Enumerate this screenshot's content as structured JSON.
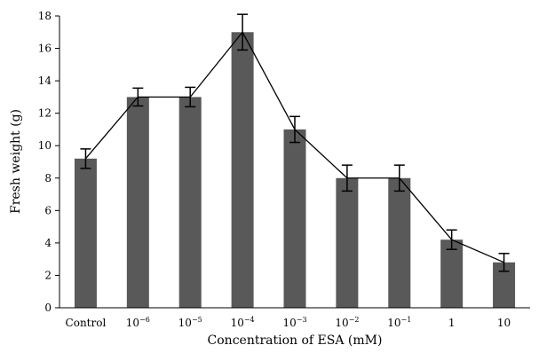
{
  "chart_data": {
    "type": "bar",
    "title": "",
    "xlabel": "Concentration of ESA (mM)",
    "ylabel": "Fresh weight (g)",
    "ylim": [
      0,
      18
    ],
    "yticks": [
      0,
      2,
      4,
      6,
      8,
      10,
      12,
      14,
      16,
      18
    ],
    "grid": false,
    "legend": "none",
    "bar_color": "#595959",
    "line_color": "#000000",
    "categories": [
      {
        "label": "Control"
      },
      {
        "base": "10",
        "exp": "−6"
      },
      {
        "base": "10",
        "exp": "−5"
      },
      {
        "base": "10",
        "exp": "−4"
      },
      {
        "base": "10",
        "exp": "−3"
      },
      {
        "base": "10",
        "exp": "−2"
      },
      {
        "base": "10",
        "exp": "−1"
      },
      {
        "label": "1"
      },
      {
        "label": "10"
      }
    ],
    "values": [
      9.2,
      13.0,
      13.0,
      17.0,
      11.0,
      8.0,
      8.0,
      4.2,
      2.8
    ],
    "errors": [
      0.6,
      0.55,
      0.6,
      1.1,
      0.8,
      0.8,
      0.8,
      0.6,
      0.55
    ],
    "trend_line": true
  }
}
